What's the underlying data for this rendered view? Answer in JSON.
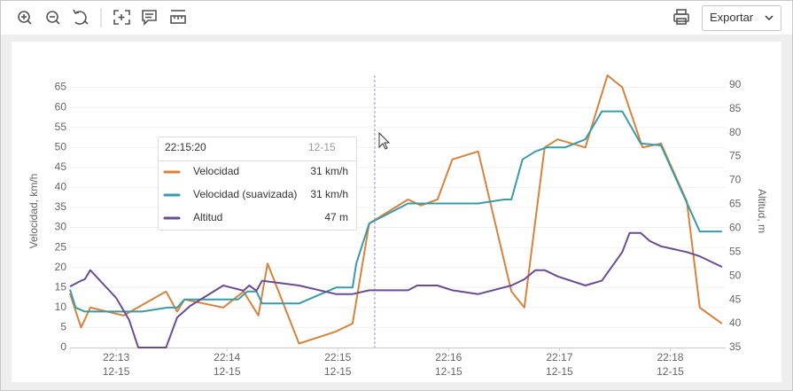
{
  "toolbar": {
    "export": "Exportar"
  },
  "chart_data": {
    "type": "line",
    "y_label": "Velocidad, km/h",
    "y2_label": "Altitud, m",
    "xlim": [
      "22:12:35",
      "22:18:30"
    ],
    "xticks": [
      {
        "value": "22:13:00",
        "label": "22:13",
        "date": "12-15"
      },
      {
        "value": "22:14:00",
        "label": "22:14",
        "date": "12-15"
      },
      {
        "value": "22:15:00",
        "label": "22:15",
        "date": "12-15"
      },
      {
        "value": "22:16:00",
        "label": "22:16",
        "date": "12-15"
      },
      {
        "value": "22:17:00",
        "label": "22:17",
        "date": "12-15"
      },
      {
        "value": "22:18:00",
        "label": "22:18",
        "date": "12-15"
      }
    ],
    "ylim": [
      0,
      68
    ],
    "yticks": [
      0,
      5,
      10,
      15,
      20,
      25,
      30,
      35,
      40,
      45,
      50,
      55,
      60,
      65
    ],
    "y2lim": [
      35,
      92
    ],
    "y2ticks": [
      35,
      40,
      45,
      50,
      55,
      60,
      65,
      70,
      75,
      80,
      85,
      90
    ],
    "grid": true,
    "series": [
      {
        "name": "Velocidad",
        "color": "#d9823b",
        "x": [
          "22:12:35",
          "22:12:41",
          "22:12:46",
          "22:13:04",
          "22:13:27",
          "22:13:33",
          "22:13:37",
          "22:13:58",
          "22:14:09",
          "22:14:17",
          "22:14:22",
          "22:14:39",
          "22:14:59",
          "22:15:08",
          "22:15:17",
          "22:15:38",
          "22:15:45",
          "22:15:54",
          "22:16:02",
          "22:16:16",
          "22:16:34",
          "22:16:41",
          "22:16:52",
          "22:16:59",
          "22:17:14",
          "22:17:26",
          "22:17:34",
          "22:17:45",
          "22:17:55",
          "22:18:09",
          "22:18:16",
          "22:18:28"
        ],
        "values": [
          13.5,
          5,
          10,
          8,
          14,
          9,
          12,
          10,
          14,
          8,
          21,
          1,
          4,
          6,
          31,
          37,
          35.5,
          37,
          47,
          49,
          14,
          10,
          50,
          52,
          50,
          68,
          65,
          50,
          51,
          36.5,
          10,
          6
        ]
      },
      {
        "name": "Velocidad (suavizada)",
        "color": "#3a9ba8",
        "x": [
          "22:12:35",
          "22:12:38",
          "22:12:43",
          "22:13:00",
          "22:13:14",
          "22:13:28",
          "22:13:33",
          "22:13:37",
          "22:14:06",
          "22:14:11",
          "22:14:16",
          "22:14:19",
          "22:14:39",
          "22:14:59",
          "22:15:08",
          "22:15:10",
          "22:15:17",
          "22:15:38",
          "22:16:16",
          "22:16:30",
          "22:16:34",
          "22:16:40",
          "22:16:47",
          "22:16:53",
          "22:17:03",
          "22:17:14",
          "22:17:23",
          "22:17:34",
          "22:17:44",
          "22:17:55",
          "22:18:16",
          "22:18:28"
        ],
        "values": [
          14.5,
          10,
          9,
          9,
          9,
          10,
          10,
          12,
          12,
          14,
          14,
          11,
          11,
          15,
          15,
          21,
          31,
          36,
          36,
          37,
          37,
          47,
          49,
          50,
          50,
          52,
          59,
          59,
          51,
          50.5,
          29,
          29
        ]
      },
      {
        "name": "Altitud",
        "color": "#6a4c93",
        "axis": "y2",
        "x": [
          "22:12:35",
          "22:12:41",
          "22:12:43",
          "22:12:46",
          "22:13:00",
          "22:13:07",
          "22:13:12",
          "22:13:27",
          "22:13:33",
          "22:13:40",
          "22:13:58",
          "22:14:09",
          "22:14:12",
          "22:14:16",
          "22:14:19",
          "22:14:39",
          "22:14:59",
          "22:15:08",
          "22:15:17",
          "22:15:38",
          "22:15:43",
          "22:15:54",
          "22:16:02",
          "22:16:16",
          "22:16:34",
          "22:16:41",
          "22:16:47",
          "22:16:52",
          "22:16:59",
          "22:17:14",
          "22:17:23",
          "22:17:34",
          "22:17:38",
          "22:17:44",
          "22:17:49",
          "22:17:55",
          "22:18:09",
          "22:18:16",
          "22:18:28"
        ],
        "values": [
          47.8,
          49,
          49.3,
          51.2,
          45.4,
          40.8,
          35,
          35,
          41.3,
          43.7,
          48,
          46.9,
          48,
          46.9,
          49,
          48,
          46.2,
          46.2,
          47,
          47,
          48,
          48,
          47,
          46.2,
          48,
          49.3,
          51.2,
          51.2,
          49.9,
          48,
          49,
          55,
          59,
          59,
          57.3,
          56.2,
          55,
          54.1,
          51.9
        ]
      }
    ],
    "tooltip": {
      "time": "22:15:20",
      "date": "12-15",
      "values": [
        "31 km/h",
        "31 km/h",
        "47 m"
      ]
    }
  }
}
